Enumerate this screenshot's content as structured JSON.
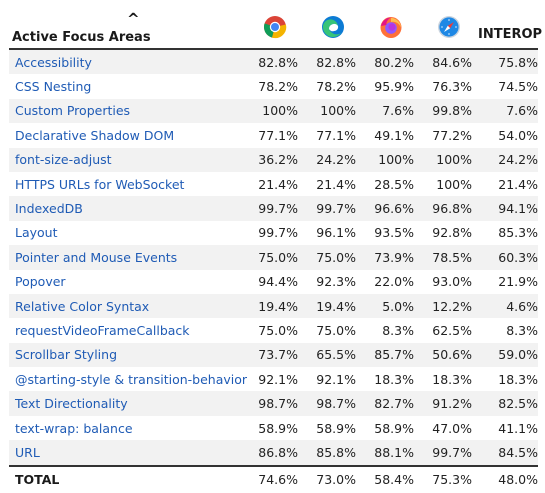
{
  "header": {
    "title": "Active Focus Areas",
    "sort_glyph": "^",
    "browsers": [
      {
        "name": "chrome-icon"
      },
      {
        "name": "edge-icon"
      },
      {
        "name": "firefox-icon"
      },
      {
        "name": "safari-icon"
      }
    ],
    "interop_label": "INTEROP"
  },
  "rows": [
    {
      "feature": "Accessibility",
      "chrome": "82.8%",
      "edge": "82.8%",
      "firefox": "80.2%",
      "safari": "84.6%",
      "interop": "75.8%"
    },
    {
      "feature": "CSS Nesting",
      "chrome": "78.2%",
      "edge": "78.2%",
      "firefox": "95.9%",
      "safari": "76.3%",
      "interop": "74.5%"
    },
    {
      "feature": "Custom Properties",
      "chrome": "100%",
      "edge": "100%",
      "firefox": "7.6%",
      "safari": "99.8%",
      "interop": "7.6%"
    },
    {
      "feature": "Declarative Shadow DOM",
      "chrome": "77.1%",
      "edge": "77.1%",
      "firefox": "49.1%",
      "safari": "77.2%",
      "interop": "54.0%"
    },
    {
      "feature": "font-size-adjust",
      "chrome": "36.2%",
      "edge": "24.2%",
      "firefox": "100%",
      "safari": "100%",
      "interop": "24.2%"
    },
    {
      "feature": "HTTPS URLs for WebSocket",
      "chrome": "21.4%",
      "edge": "21.4%",
      "firefox": "28.5%",
      "safari": "100%",
      "interop": "21.4%"
    },
    {
      "feature": "IndexedDB",
      "chrome": "99.7%",
      "edge": "99.7%",
      "firefox": "96.6%",
      "safari": "96.8%",
      "interop": "94.1%"
    },
    {
      "feature": "Layout",
      "chrome": "99.7%",
      "edge": "96.1%",
      "firefox": "93.5%",
      "safari": "92.8%",
      "interop": "85.3%"
    },
    {
      "feature": "Pointer and Mouse Events",
      "chrome": "75.0%",
      "edge": "75.0%",
      "firefox": "73.9%",
      "safari": "78.5%",
      "interop": "60.3%"
    },
    {
      "feature": "Popover",
      "chrome": "94.4%",
      "edge": "92.3%",
      "firefox": "22.0%",
      "safari": "93.0%",
      "interop": "21.9%"
    },
    {
      "feature": "Relative Color Syntax",
      "chrome": "19.4%",
      "edge": "19.4%",
      "firefox": "5.0%",
      "safari": "12.2%",
      "interop": "4.6%"
    },
    {
      "feature": "requestVideoFrameCallback",
      "chrome": "75.0%",
      "edge": "75.0%",
      "firefox": "8.3%",
      "safari": "62.5%",
      "interop": "8.3%"
    },
    {
      "feature": "Scrollbar Styling",
      "chrome": "73.7%",
      "edge": "65.5%",
      "firefox": "85.7%",
      "safari": "50.6%",
      "interop": "59.0%"
    },
    {
      "feature": "@starting-style & transition-behavior",
      "chrome": "92.1%",
      "edge": "92.1%",
      "firefox": "18.3%",
      "safari": "18.3%",
      "interop": "18.3%"
    },
    {
      "feature": "Text Directionality",
      "chrome": "98.7%",
      "edge": "98.7%",
      "firefox": "82.7%",
      "safari": "91.2%",
      "interop": "82.5%"
    },
    {
      "feature": "text-wrap: balance",
      "chrome": "58.9%",
      "edge": "58.9%",
      "firefox": "58.9%",
      "safari": "47.0%",
      "interop": "41.1%"
    },
    {
      "feature": "URL",
      "chrome": "86.8%",
      "edge": "85.8%",
      "firefox": "88.1%",
      "safari": "99.7%",
      "interop": "84.5%"
    }
  ],
  "total": {
    "feature": "TOTAL",
    "chrome": "74.6%",
    "edge": "73.0%",
    "firefox": "58.4%",
    "safari": "75.3%",
    "interop": "48.0%"
  },
  "colors": {
    "link": "#1f5bb5",
    "stripe": "#f2f2f2",
    "rule": "#333333"
  }
}
